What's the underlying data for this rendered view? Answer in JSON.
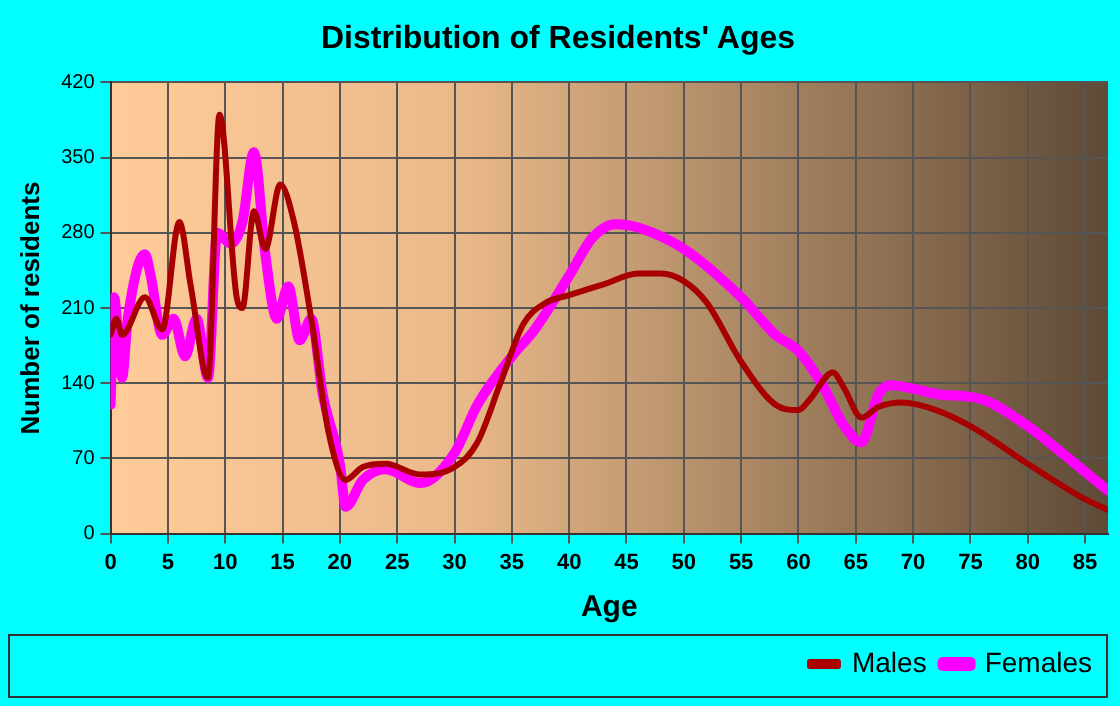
{
  "chart_data": {
    "type": "line",
    "title": "Distribution of Residents' Ages",
    "xlabel": "Age",
    "ylabel": "Number of residents",
    "xlim": [
      0,
      87
    ],
    "xticks": [
      0,
      5,
      10,
      15,
      20,
      25,
      30,
      35,
      40,
      45,
      50,
      55,
      60,
      65,
      70,
      75,
      80,
      85
    ],
    "ylim": [
      0,
      420
    ],
    "yticks": [
      0,
      70,
      140,
      210,
      280,
      350,
      420
    ],
    "grid": true,
    "legend": "bottom right",
    "marker": "none",
    "line_style": "solid",
    "series": [
      {
        "name": "Males",
        "color": "#a80000",
        "x": [
          0,
          0.5,
          1,
          3,
          4.5,
          6,
          7,
          8.5,
          9.5,
          11,
          11.5,
          12.5,
          13.5,
          14.8,
          16,
          17.5,
          19,
          20.5,
          22,
          24,
          27,
          30,
          32,
          34,
          36,
          38,
          40,
          43,
          46,
          48,
          50,
          52,
          55,
          58,
          60,
          61,
          63,
          64,
          65.5,
          67,
          69,
          72,
          75,
          80,
          85,
          87
        ],
        "values": [
          185,
          200,
          185,
          220,
          190,
          290,
          230,
          145,
          390,
          220,
          210,
          300,
          265,
          325,
          290,
          200,
          95,
          50,
          62,
          65,
          55,
          62,
          85,
          140,
          195,
          215,
          222,
          232,
          242,
          242,
          235,
          215,
          160,
          120,
          115,
          125,
          150,
          135,
          108,
          118,
          122,
          115,
          100,
          65,
          32,
          22
        ]
      },
      {
        "name": "Females",
        "color": "#ff00ff",
        "x": [
          0,
          0.3,
          1,
          1.5,
          3,
          3.5,
          4.5,
          5.5,
          6.5,
          7.5,
          8.5,
          9.3,
          10.5,
          11.5,
          12.5,
          13.5,
          14.5,
          15.5,
          16.5,
          17.5,
          18.5,
          20,
          20.5,
          22,
          24,
          27,
          30,
          32,
          35,
          37,
          40,
          42,
          44,
          46,
          50,
          55,
          58,
          60,
          62,
          64,
          65.5,
          67,
          68,
          70,
          72,
          76,
          80,
          83,
          87
        ],
        "values": [
          120,
          220,
          145,
          200,
          260,
          240,
          185,
          200,
          165,
          200,
          145,
          280,
          270,
          290,
          355,
          260,
          200,
          230,
          180,
          200,
          130,
          65,
          25,
          50,
          60,
          47,
          75,
          120,
          165,
          190,
          240,
          275,
          288,
          285,
          265,
          220,
          185,
          170,
          140,
          100,
          85,
          130,
          138,
          135,
          130,
          125,
          100,
          75,
          40
        ]
      }
    ]
  }
}
